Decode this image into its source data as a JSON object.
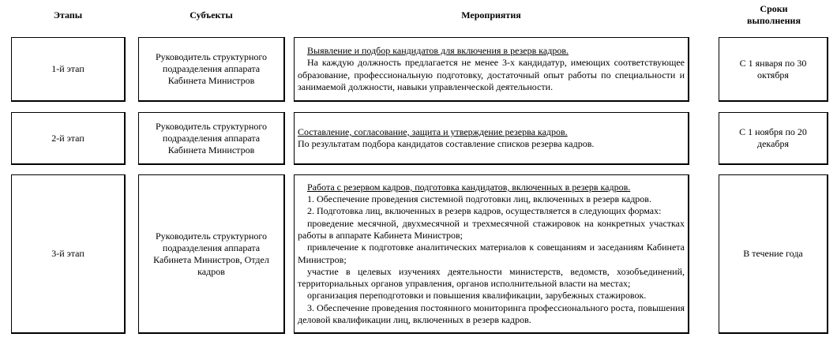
{
  "headers": {
    "stages": "Этапы",
    "subjects": "Субъекты",
    "activities": "Мероприятия",
    "deadlines": "Сроки выполнения"
  },
  "rows": [
    {
      "stage": "1-й этап",
      "subject": "Руководитель структурного подразделения аппарата Кабинета Министров",
      "title": "Выявление и подбор кандидатов для включения в резерв кадров.",
      "lines": [
        "На каждую должность предлагается не менее 3-х кандидатур, имеющих соответствующее образование, профессиональную подготовку, достаточный опыт работы по специальности и занимаемой должности, навыки управленческой деятельности."
      ],
      "deadline": "С 1 января по 30 октября"
    },
    {
      "stage": "2-й этап",
      "subject": "Руководитель структурного подразделения аппарата Кабинета Министров",
      "title": "Составление, согласование, защита и утверждение резерва кадров.",
      "lines": [
        "По результатам подбора кандидатов составление списков резерва кадров."
      ],
      "deadline": "С 1 ноября по 20 декабря"
    },
    {
      "stage": "3-й этап",
      "subject": "Руководитель структурного подразделения аппарата Кабинета Министров, Отдел кадров",
      "title": "Работа с резервом кадров, подготовка кандидатов, включенных в резерв кадров.",
      "lines": [
        "1. Обеспечение проведения системной подготовки лиц, включенных в резерв кадров.",
        "2. Подготовка лиц, включенных в резерв кадров, осуществляется в следующих формах:",
        "проведение месячной, двухмесячной и трехмесячной стажировок на конкретных участках работы в аппарате Кабинета Министров;",
        "привлечение к подготовке аналитических материалов к совещаниям и заседаниям Кабинета Министров;",
        "участие в целевых изучениях деятельности министерств, ведомств, хозобъединений, территориальных органов управления, органов исполнительной власти на местах;",
        "организация переподготовки и повышения квалификации, зарубежных стажировок.",
        "3. Обеспечение проведения постоянного мониторинга профессионального роста, повышения деловой квалификации лиц, включенных в резерв кадров."
      ],
      "deadline": "В течение года"
    }
  ]
}
